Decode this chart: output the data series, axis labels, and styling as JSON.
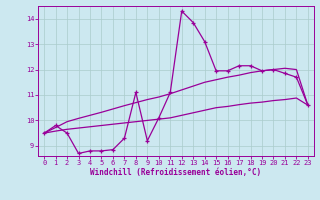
{
  "x_values": [
    0,
    1,
    2,
    3,
    4,
    5,
    6,
    7,
    8,
    9,
    10,
    11,
    12,
    13,
    14,
    15,
    16,
    17,
    18,
    19,
    20,
    21,
    22,
    23
  ],
  "line_jagged": [
    9.5,
    9.8,
    9.5,
    8.7,
    8.8,
    8.8,
    8.85,
    9.3,
    11.1,
    9.2,
    10.1,
    11.1,
    14.3,
    13.85,
    13.1,
    11.95,
    11.95,
    12.15,
    12.15,
    11.95,
    12.0,
    11.85,
    11.7,
    10.6
  ],
  "line_upper": [
    9.5,
    9.72,
    9.95,
    10.08,
    10.2,
    10.32,
    10.45,
    10.58,
    10.7,
    10.82,
    10.92,
    11.05,
    11.2,
    11.35,
    11.5,
    11.6,
    11.7,
    11.78,
    11.88,
    11.95,
    12.0,
    12.05,
    12.0,
    10.6
  ],
  "line_lower": [
    9.5,
    9.58,
    9.65,
    9.7,
    9.75,
    9.8,
    9.85,
    9.9,
    9.95,
    10.0,
    10.05,
    10.1,
    10.2,
    10.3,
    10.4,
    10.5,
    10.55,
    10.62,
    10.68,
    10.72,
    10.78,
    10.82,
    10.88,
    10.6
  ],
  "color": "#990099",
  "bg_color": "#cce8f0",
  "grid_color": "#aacccc",
  "xlabel": "Windchill (Refroidissement éolien,°C)",
  "ylim": [
    8.6,
    14.5
  ],
  "xlim": [
    -0.5,
    23.5
  ],
  "yticks": [
    9,
    10,
    11,
    12,
    13,
    14
  ],
  "xticks": [
    0,
    1,
    2,
    3,
    4,
    5,
    6,
    7,
    8,
    9,
    10,
    11,
    12,
    13,
    14,
    15,
    16,
    17,
    18,
    19,
    20,
    21,
    22,
    23
  ]
}
